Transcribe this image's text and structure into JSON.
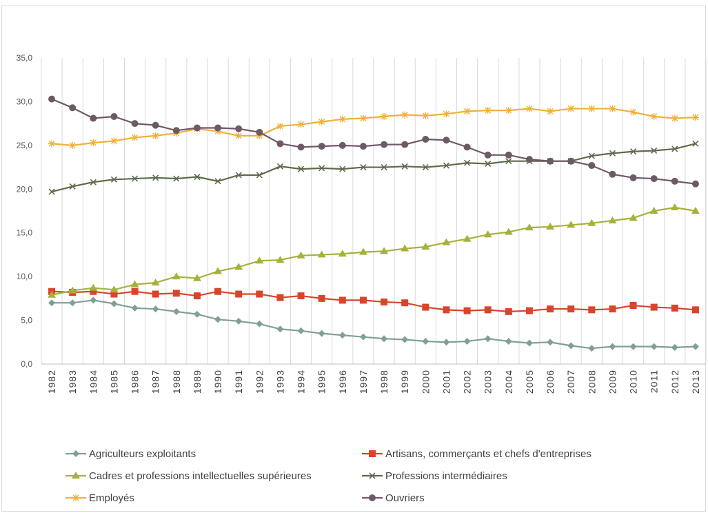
{
  "chart_data": {
    "type": "line",
    "title": "",
    "xlabel": "",
    "ylabel": "",
    "ylim": [
      0,
      35
    ],
    "yticks": [
      "0,0",
      "5,0",
      "10,0",
      "15,0",
      "20,0",
      "25,0",
      "30,0",
      "35,0"
    ],
    "grid": "vertical",
    "legend_position": "bottom",
    "categories": [
      "1982",
      "1983",
      "1984",
      "1985",
      "1986",
      "1987",
      "1988",
      "1989",
      "1990",
      "1991",
      "1992",
      "1993",
      "1994",
      "1995",
      "1996",
      "1997",
      "1998",
      "1999",
      "2000",
      "2001",
      "2002",
      "2003",
      "2004",
      "2005",
      "2006",
      "2007",
      "2008",
      "2009",
      "2010",
      "2011",
      "2012",
      "2013"
    ],
    "series": [
      {
        "name": "Agriculteurs exploitants",
        "color": "#7f9f97",
        "marker": "diamond",
        "values": [
          7.0,
          7.0,
          7.3,
          6.9,
          6.4,
          6.3,
          6.0,
          5.7,
          5.1,
          4.9,
          4.6,
          4.0,
          3.8,
          3.5,
          3.3,
          3.1,
          2.9,
          2.8,
          2.6,
          2.5,
          2.6,
          2.9,
          2.6,
          2.4,
          2.5,
          2.1,
          1.8,
          2.0,
          2.0,
          2.0,
          1.9,
          2.0
        ]
      },
      {
        "name": "Artisans, commerçants et chefs d'entreprises",
        "color": "#d9442b",
        "marker": "square",
        "values": [
          8.3,
          8.2,
          8.3,
          8.0,
          8.3,
          8.0,
          8.1,
          7.8,
          8.3,
          8.0,
          8.0,
          7.6,
          7.8,
          7.5,
          7.3,
          7.3,
          7.1,
          7.0,
          6.5,
          6.2,
          6.1,
          6.2,
          6.0,
          6.1,
          6.3,
          6.3,
          6.2,
          6.3,
          6.7,
          6.5,
          6.4,
          6.2
        ]
      },
      {
        "name": "Cadres et professions intellectuelles supérieures",
        "color": "#a6b13b",
        "marker": "triangle",
        "values": [
          7.9,
          8.4,
          8.7,
          8.5,
          9.1,
          9.3,
          10.0,
          9.8,
          10.6,
          11.1,
          11.8,
          11.9,
          12.4,
          12.5,
          12.6,
          12.8,
          12.9,
          13.2,
          13.4,
          13.9,
          14.3,
          14.8,
          15.1,
          15.6,
          15.7,
          15.9,
          16.1,
          16.4,
          16.7,
          17.5,
          17.9,
          17.5
        ]
      },
      {
        "name": "Professions intermédiaires",
        "color": "#5e6a4b",
        "marker": "x",
        "values": [
          19.7,
          20.3,
          20.8,
          21.1,
          21.2,
          21.3,
          21.2,
          21.4,
          20.9,
          21.6,
          21.6,
          22.6,
          22.3,
          22.4,
          22.3,
          22.5,
          22.5,
          22.6,
          22.5,
          22.7,
          23.0,
          22.9,
          23.2,
          23.2,
          23.2,
          23.2,
          23.8,
          24.1,
          24.3,
          24.4,
          24.6,
          25.2
        ]
      },
      {
        "name": "Employés",
        "color": "#f0b03a",
        "marker": "star",
        "values": [
          25.2,
          25.0,
          25.3,
          25.5,
          25.9,
          26.1,
          26.4,
          26.9,
          26.6,
          26.1,
          26.1,
          27.2,
          27.4,
          27.7,
          28.0,
          28.1,
          28.3,
          28.5,
          28.4,
          28.6,
          28.9,
          29.0,
          29.0,
          29.2,
          28.9,
          29.2,
          29.2,
          29.2,
          28.8,
          28.3,
          28.1,
          28.2
        ]
      },
      {
        "name": "Ouvriers",
        "color": "#6e5966",
        "marker": "circle",
        "values": [
          30.3,
          29.3,
          28.1,
          28.3,
          27.5,
          27.3,
          26.7,
          27.0,
          27.0,
          26.9,
          26.5,
          25.2,
          24.8,
          24.9,
          25.0,
          24.9,
          25.1,
          25.1,
          25.7,
          25.6,
          24.8,
          23.9,
          23.9,
          23.4,
          23.2,
          23.2,
          22.7,
          21.7,
          21.3,
          21.2,
          20.9,
          20.6
        ]
      }
    ]
  }
}
